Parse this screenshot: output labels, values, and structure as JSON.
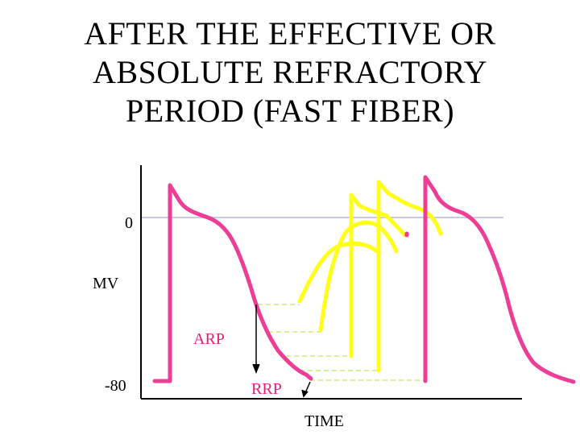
{
  "title_lines": [
    "AFTER THE EFFECTIVE OR",
    "ABSOLUTE REFRACTORY",
    "PERIOD (FAST FIBER)"
  ],
  "labels": {
    "zero": "0",
    "mv": "MV",
    "minus80": "-80",
    "arp": "ARP",
    "rrp": "RRP",
    "time": "TIME"
  },
  "colors": {
    "action_potential": "#ee3d96",
    "premature_response": "#ffff1a",
    "zero_line": "#c9c9e6",
    "threshold_dash": "#d8f0a0",
    "arp_text": "#e0207a",
    "rrp_text": "#e0207a",
    "axis": "#000000"
  }
}
